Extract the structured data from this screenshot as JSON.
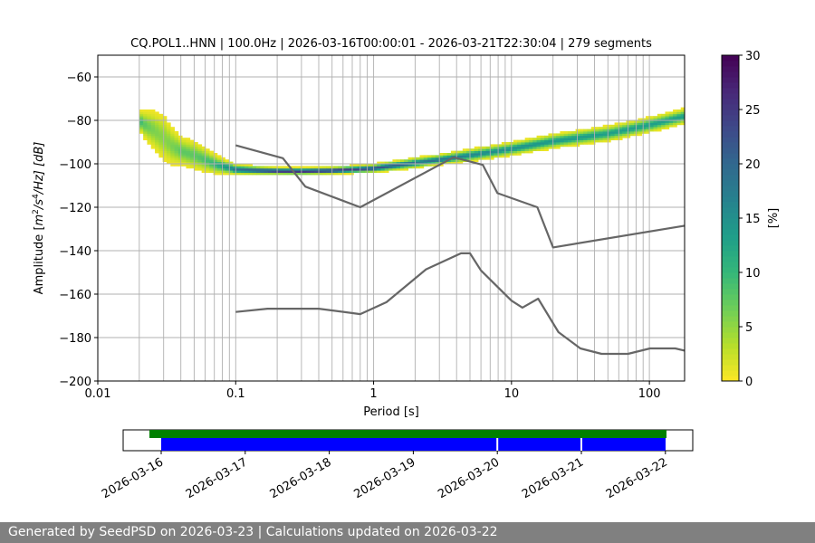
{
  "chart_data": {
    "type": "heatmap",
    "title": "CQ.POL1..HNN | 100.0Hz | 2026-03-16T00:00:01 - 2026-03-21T22:30:04 | 279 segments",
    "xlabel": "Period [s]",
    "ylabel_parts": {
      "prefix": "Amplitude [",
      "m": "m",
      "exp_a": "2",
      "mid": "/s",
      "exp_b": "4",
      "suffix": "/Hz] [dB]"
    },
    "x_scale": "log",
    "xlim": [
      0.01,
      180
    ],
    "ylim": [
      -200,
      -50
    ],
    "x_ticks": [
      {
        "value": 0.01,
        "label": "0.01"
      },
      {
        "value": 0.1,
        "label": "0.1"
      },
      {
        "value": 1,
        "label": "1"
      },
      {
        "value": 10,
        "label": "10"
      },
      {
        "value": 100,
        "label": "100"
      }
    ],
    "y_ticks": [
      {
        "value": -60,
        "label": "−60"
      },
      {
        "value": -80,
        "label": "−80"
      },
      {
        "value": -100,
        "label": "−100"
      },
      {
        "value": -120,
        "label": "−120"
      },
      {
        "value": -140,
        "label": "−140"
      },
      {
        "value": -160,
        "label": "−160"
      },
      {
        "value": -180,
        "label": "−180"
      },
      {
        "value": -200,
        "label": "−200"
      }
    ],
    "period_grid": [
      0.02,
      0.03,
      0.04,
      0.05,
      0.06,
      0.07,
      0.08,
      0.09,
      0.1,
      0.2,
      0.3,
      0.4,
      0.5,
      0.6,
      0.7,
      0.8,
      0.9,
      1,
      2,
      3,
      4,
      5,
      6,
      7,
      8,
      9,
      10,
      20,
      30,
      40,
      50,
      60,
      70,
      80,
      90,
      100
    ],
    "colorbar": {
      "label": "[%]",
      "min": 0,
      "max": 30,
      "ticks": [
        {
          "value": 0,
          "label": "0"
        },
        {
          "value": 5,
          "label": "5"
        },
        {
          "value": 10,
          "label": "10"
        },
        {
          "value": 15,
          "label": "15"
        },
        {
          "value": 20,
          "label": "20"
        },
        {
          "value": 25,
          "label": "25"
        },
        {
          "value": 30,
          "label": "30"
        }
      ],
      "colormap": [
        "#fde725",
        "#b5de2b",
        "#6ece58",
        "#35b779",
        "#1f9e89",
        "#26828e",
        "#31688e",
        "#3e4989",
        "#482878",
        "#440154"
      ]
    },
    "psd_curve": [
      [
        0.02,
        -80,
        2
      ],
      [
        0.022,
        -82,
        3
      ],
      [
        0.025,
        -84,
        4
      ],
      [
        0.03,
        -88,
        5
      ],
      [
        0.035,
        -92,
        4
      ],
      [
        0.04,
        -94,
        3
      ],
      [
        0.05,
        -96,
        3
      ],
      [
        0.06,
        -98,
        2.5
      ],
      [
        0.07,
        -100,
        2
      ],
      [
        0.08,
        -101,
        1.5
      ],
      [
        0.1,
        -102.5,
        1
      ],
      [
        0.15,
        -103,
        0.8
      ],
      [
        0.2,
        -103.2,
        0.7
      ],
      [
        0.3,
        -103.3,
        0.7
      ],
      [
        0.5,
        -103,
        0.7
      ],
      [
        1,
        -102,
        0.8
      ],
      [
        2,
        -99.5,
        1
      ],
      [
        3,
        -98,
        1
      ],
      [
        5,
        -96,
        1.2
      ],
      [
        10,
        -93,
        1.3
      ],
      [
        20,
        -89.5,
        1.4
      ],
      [
        50,
        -86,
        1.5
      ],
      [
        100,
        -82,
        1.5
      ],
      [
        180,
        -78,
        1.5
      ]
    ],
    "series": [
      {
        "name": "upper noise model",
        "color": "#666666",
        "points": [
          [
            0.1,
            -91.5
          ],
          [
            0.22,
            -97.4
          ],
          [
            0.32,
            -110.5
          ],
          [
            0.8,
            -120
          ],
          [
            3.8,
            -97
          ],
          [
            6.2,
            -100.5
          ],
          [
            7.9,
            -113.5
          ],
          [
            15.4,
            -120
          ],
          [
            20,
            -138.5
          ],
          [
            180,
            -128.5
          ]
        ]
      },
      {
        "name": "lower noise model",
        "color": "#666666",
        "points": [
          [
            0.1,
            -168.2
          ],
          [
            0.17,
            -166.7
          ],
          [
            0.4,
            -166.7
          ],
          [
            0.8,
            -169.2
          ],
          [
            1.24,
            -163.7
          ],
          [
            2.4,
            -148.6
          ],
          [
            4.3,
            -141.2
          ],
          [
            5.0,
            -141.2
          ],
          [
            6.0,
            -149.1
          ],
          [
            10,
            -163
          ],
          [
            12,
            -166.2
          ],
          [
            15.6,
            -162.1
          ],
          [
            21.9,
            -177.5
          ],
          [
            31.6,
            -185
          ],
          [
            45,
            -187.5
          ],
          [
            70,
            -187.5
          ],
          [
            101,
            -185
          ],
          [
            154,
            -185
          ],
          [
            180,
            -186
          ]
        ]
      }
    ]
  },
  "timeline": {
    "ticks": [
      "2026-03-16",
      "2026-03-17",
      "2026-03-18",
      "2026-03-19",
      "2026-03-20",
      "2026-03-21",
      "2026-03-22"
    ],
    "data_available_color": "#008000",
    "segments_color": "#0000ff",
    "gap_day_positions": [
      4,
      5
    ]
  },
  "footer": {
    "text": "Generated by SeedPSD on 2026-03-23 | Calculations updated on 2026-03-22"
  }
}
